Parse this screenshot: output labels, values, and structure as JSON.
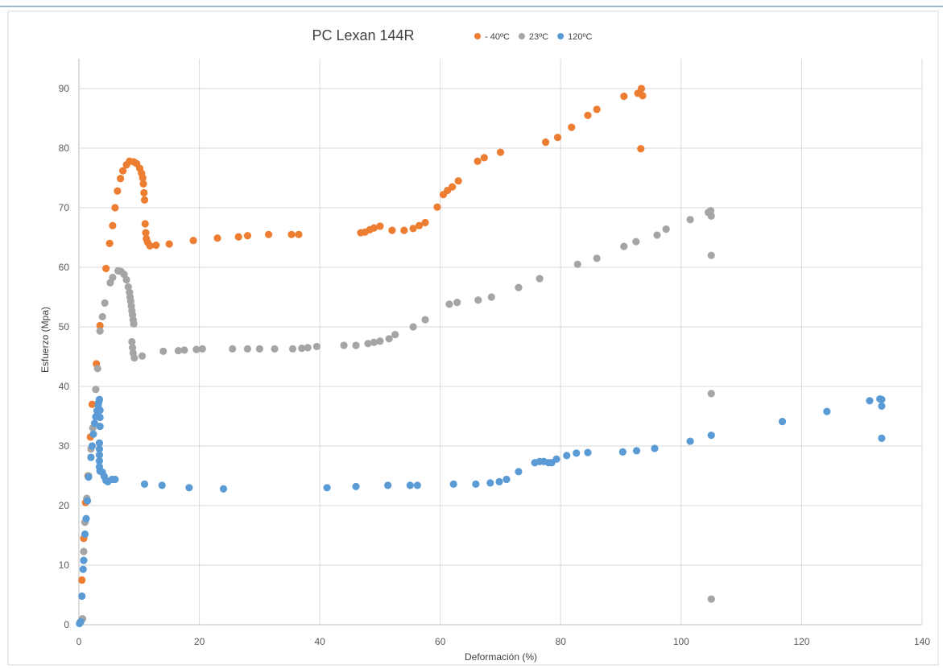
{
  "chart_data": {
    "type": "scatter",
    "title": "PC Lexan 144R",
    "xlabel": "Deformación  (%)",
    "ylabel": "Esfuerzo (Mpa)",
    "xlim": [
      0,
      140
    ],
    "ylim": [
      0,
      95
    ],
    "xticks": [
      0,
      20,
      40,
      60,
      80,
      100,
      120,
      140
    ],
    "yticks": [
      0,
      10,
      20,
      30,
      40,
      50,
      60,
      70,
      80,
      90
    ],
    "grid": true,
    "legend_position": "top",
    "series": [
      {
        "name": "- 40ºC",
        "color": "#ed7d31",
        "points": [
          [
            0.5,
            7.5
          ],
          [
            0.8,
            14.5
          ],
          [
            1.1,
            20.5
          ],
          [
            1.5,
            25
          ],
          [
            1.9,
            31.5
          ],
          [
            2.2,
            37
          ],
          [
            2.9,
            43.8
          ],
          [
            3.5,
            50.2
          ],
          [
            4.5,
            59.8
          ],
          [
            5.1,
            64
          ],
          [
            5.6,
            67
          ],
          [
            6,
            70
          ],
          [
            6.4,
            72.8
          ],
          [
            6.9,
            74.9
          ],
          [
            7.3,
            76.2
          ],
          [
            7.9,
            77.2
          ],
          [
            8.4,
            77.8
          ],
          [
            9.1,
            77.7
          ],
          [
            9.6,
            77.4
          ],
          [
            10.1,
            76.6
          ],
          [
            10.4,
            75.8
          ],
          [
            10.6,
            75
          ],
          [
            10.7,
            74
          ],
          [
            10.8,
            72.5
          ],
          [
            10.9,
            71.3
          ],
          [
            11,
            67.3
          ],
          [
            11.1,
            65.8
          ],
          [
            11.2,
            64.8
          ],
          [
            11.4,
            64.2
          ],
          [
            11.8,
            63.6
          ],
          [
            12.8,
            63.7
          ],
          [
            15,
            63.9
          ],
          [
            19,
            64.5
          ],
          [
            23,
            64.9
          ],
          [
            26.5,
            65.1
          ],
          [
            28,
            65.3
          ],
          [
            31.5,
            65.5
          ],
          [
            35.3,
            65.5
          ],
          [
            36.5,
            65.5
          ],
          [
            46.8,
            65.8
          ],
          [
            47.5,
            65.9
          ],
          [
            48.3,
            66.3
          ],
          [
            49,
            66.6
          ],
          [
            50,
            66.9
          ],
          [
            52,
            66.2
          ],
          [
            54,
            66.2
          ],
          [
            55.5,
            66.5
          ],
          [
            56.5,
            67
          ],
          [
            57.5,
            67.5
          ],
          [
            59.5,
            70.1
          ],
          [
            60.5,
            72.2
          ],
          [
            61.2,
            72.9
          ],
          [
            62,
            73.5
          ],
          [
            63,
            74.5
          ],
          [
            66.2,
            77.8
          ],
          [
            67.3,
            78.4
          ],
          [
            70,
            79.3
          ],
          [
            77.5,
            81
          ],
          [
            79.5,
            81.8
          ],
          [
            81.8,
            83.5
          ],
          [
            84.5,
            85.5
          ],
          [
            86,
            86.5
          ],
          [
            90.5,
            88.7
          ],
          [
            92.8,
            89.2
          ],
          [
            93.4,
            90
          ],
          [
            93.6,
            88.8
          ],
          [
            93.3,
            79.9
          ]
        ]
      },
      {
        "name": "23ºC",
        "color": "#a5a5a5",
        "points": [
          [
            0.2,
            0.4
          ],
          [
            0.6,
            1
          ],
          [
            0.8,
            12.3
          ],
          [
            1,
            17.2
          ],
          [
            1.3,
            21.2
          ],
          [
            1.6,
            25
          ],
          [
            2,
            29.5
          ],
          [
            2.3,
            33
          ],
          [
            2.8,
            39.5
          ],
          [
            3.1,
            43
          ],
          [
            3.5,
            49.3
          ],
          [
            3.9,
            51.7
          ],
          [
            4.3,
            54
          ],
          [
            5.2,
            57.4
          ],
          [
            5.6,
            58.3
          ],
          [
            6.5,
            59.4
          ],
          [
            7,
            59.3
          ],
          [
            7.5,
            58.8
          ],
          [
            7.9,
            57.9
          ],
          [
            8.2,
            56.7
          ],
          [
            8.4,
            55.8
          ],
          [
            8.5,
            55
          ],
          [
            8.6,
            54.3
          ],
          [
            8.7,
            53.5
          ],
          [
            8.8,
            52.7
          ],
          [
            8.9,
            52
          ],
          [
            9,
            51.2
          ],
          [
            9.1,
            50.5
          ],
          [
            8.8,
            47.5
          ],
          [
            8.9,
            46.5
          ],
          [
            9,
            45.6
          ],
          [
            9.2,
            44.8
          ],
          [
            10.5,
            45.1
          ],
          [
            14,
            45.9
          ],
          [
            16.5,
            46
          ],
          [
            17.5,
            46.1
          ],
          [
            19.5,
            46.2
          ],
          [
            20.5,
            46.3
          ],
          [
            25.5,
            46.3
          ],
          [
            28,
            46.3
          ],
          [
            30,
            46.3
          ],
          [
            32.5,
            46.3
          ],
          [
            35.5,
            46.3
          ],
          [
            37,
            46.4
          ],
          [
            38,
            46.5
          ],
          [
            39.5,
            46.7
          ],
          [
            44,
            46.9
          ],
          [
            46,
            46.9
          ],
          [
            48,
            47.2
          ],
          [
            49,
            47.4
          ],
          [
            50,
            47.6
          ],
          [
            51.5,
            48
          ],
          [
            52.5,
            48.7
          ],
          [
            55.5,
            50
          ],
          [
            57.5,
            51.2
          ],
          [
            61.5,
            53.8
          ],
          [
            62.8,
            54.1
          ],
          [
            66.3,
            54.5
          ],
          [
            68.5,
            55
          ],
          [
            73,
            56.6
          ],
          [
            76.5,
            58.1
          ],
          [
            82.8,
            60.5
          ],
          [
            86,
            61.5
          ],
          [
            90.5,
            63.5
          ],
          [
            92.5,
            64.3
          ],
          [
            96,
            65.4
          ],
          [
            97.5,
            66.4
          ],
          [
            101.5,
            68
          ],
          [
            104.5,
            69.2
          ],
          [
            104.9,
            69.5
          ],
          [
            105,
            68.6
          ],
          [
            105,
            62
          ],
          [
            105,
            38.8
          ],
          [
            105,
            4.3
          ]
        ]
      },
      {
        "name": "120ºC",
        "color": "#5b9bd5",
        "points": [
          [
            0.1,
            0.2
          ],
          [
            0.3,
            0.5
          ],
          [
            0.5,
            4.8
          ],
          [
            0.7,
            9.3
          ],
          [
            0.8,
            10.8
          ],
          [
            1,
            15.2
          ],
          [
            1.2,
            17.8
          ],
          [
            1.4,
            20.8
          ],
          [
            1.6,
            24.8
          ],
          [
            2,
            28.1
          ],
          [
            2.2,
            30
          ],
          [
            2.4,
            32
          ],
          [
            2.6,
            33.8
          ],
          [
            2.8,
            34.9
          ],
          [
            3,
            35.9
          ],
          [
            3.2,
            36.8
          ],
          [
            3.3,
            37.4
          ],
          [
            3.4,
            37.8
          ],
          [
            3.5,
            36
          ],
          [
            3.5,
            34.8
          ],
          [
            3.5,
            33.3
          ],
          [
            3.4,
            30.5
          ],
          [
            3.4,
            29.5
          ],
          [
            3.4,
            28.5
          ],
          [
            3.4,
            27.5
          ],
          [
            3.4,
            26.5
          ],
          [
            3.5,
            25.8
          ],
          [
            3.9,
            25.6
          ],
          [
            4.2,
            24.9
          ],
          [
            4.5,
            24.2
          ],
          [
            4.8,
            24
          ],
          [
            5.5,
            24.4
          ],
          [
            6,
            24.4
          ],
          [
            10.9,
            23.6
          ],
          [
            13.8,
            23.4
          ],
          [
            18.3,
            23
          ],
          [
            24,
            22.8
          ],
          [
            41.2,
            23
          ],
          [
            46,
            23.2
          ],
          [
            51.3,
            23.4
          ],
          [
            55,
            23.4
          ],
          [
            56.2,
            23.4
          ],
          [
            62.2,
            23.6
          ],
          [
            65.9,
            23.6
          ],
          [
            68.3,
            23.8
          ],
          [
            69.8,
            24
          ],
          [
            71,
            24.4
          ],
          [
            73,
            25.7
          ],
          [
            75.7,
            27.2
          ],
          [
            76.5,
            27.4
          ],
          [
            77.2,
            27.4
          ],
          [
            78,
            27.2
          ],
          [
            78.5,
            27.2
          ],
          [
            79.3,
            27.8
          ],
          [
            81,
            28.4
          ],
          [
            82.6,
            28.8
          ],
          [
            84.5,
            28.9
          ],
          [
            90.3,
            29
          ],
          [
            92.6,
            29.2
          ],
          [
            95.6,
            29.6
          ],
          [
            101.5,
            30.8
          ],
          [
            105,
            31.8
          ],
          [
            116.8,
            34.1
          ],
          [
            124.2,
            35.8
          ],
          [
            131.3,
            37.6
          ],
          [
            133,
            37.9
          ],
          [
            133.3,
            37.8
          ],
          [
            133.3,
            36.7
          ],
          [
            133.3,
            31.3
          ]
        ]
      }
    ]
  }
}
